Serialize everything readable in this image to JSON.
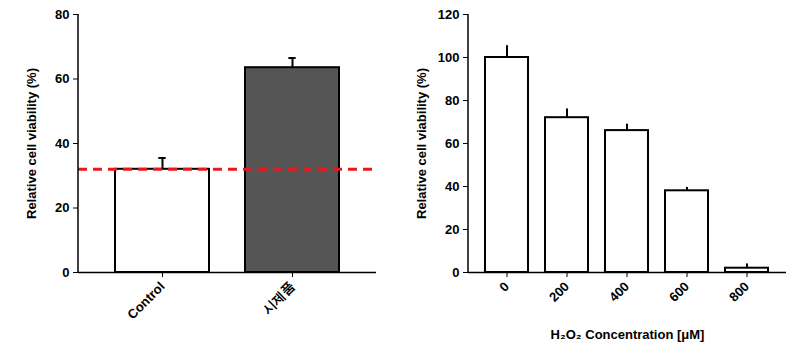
{
  "chart_data": [
    {
      "type": "bar",
      "categories": [
        "Control",
        "시제품"
      ],
      "values": [
        32,
        63.5
      ],
      "errors": [
        3.5,
        3
      ],
      "colors": [
        "#ffffff",
        "#555555"
      ],
      "ylabel": "Relative cell viability (%)",
      "ylim": [
        0,
        80
      ],
      "yticks": [
        0,
        20,
        40,
        60,
        80
      ],
      "reference_line": {
        "value": 32,
        "color": "#e41a1c",
        "line_style": "dashed"
      }
    },
    {
      "type": "bar",
      "categories": [
        "0",
        "200",
        "400",
        "600",
        "800"
      ],
      "values": [
        100,
        72,
        66,
        38,
        2
      ],
      "errors": [
        5.5,
        4,
        3,
        1.5,
        2
      ],
      "color": "#ffffff",
      "xlabel": "H₂O₂ Concentration [μM]",
      "ylabel": "Relative cell viability (%)",
      "ylim": [
        0,
        120
      ],
      "yticks": [
        0,
        20,
        40,
        60,
        80,
        100,
        120
      ]
    }
  ]
}
